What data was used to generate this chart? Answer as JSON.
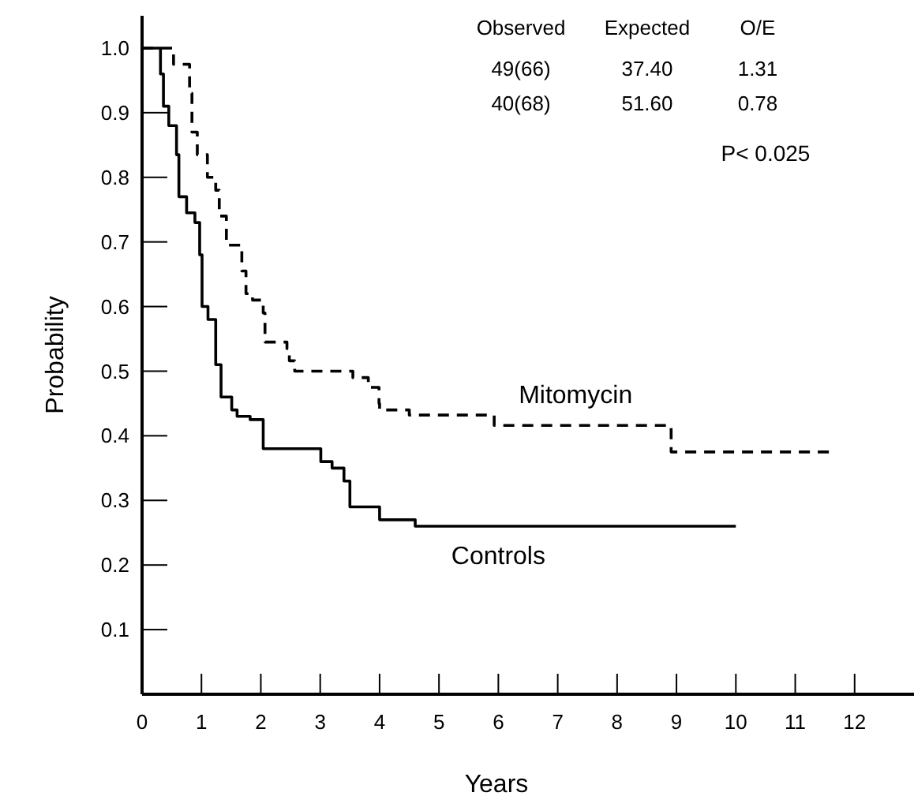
{
  "chart_data": {
    "type": "step",
    "xlabel": "Years",
    "ylabel": "Probability",
    "xlim": [
      0,
      13
    ],
    "xticks": [
      0,
      1,
      2,
      3,
      4,
      5,
      6,
      7,
      8,
      9,
      10,
      11,
      12
    ],
    "ylim": [
      0,
      1.05
    ],
    "yticks": [
      {
        "value": 0.1,
        "label": "0.1"
      },
      {
        "value": 0.2,
        "label": "0.2"
      },
      {
        "value": 0.3,
        "label": "0.3"
      },
      {
        "value": 0.4,
        "label": "0.4"
      },
      {
        "value": 0.5,
        "label": "0.5"
      },
      {
        "value": 0.6,
        "label": "0.6"
      },
      {
        "value": 0.7,
        "label": "0.7"
      },
      {
        "value": 0.8,
        "label": "0.8"
      },
      {
        "value": 0.9,
        "label": "0.9"
      },
      {
        "value": 1,
        "label": "1.0"
      }
    ],
    "grid": false,
    "series": [
      {
        "name": "Mitomycin",
        "color": "#000000",
        "line_style": "dashed",
        "x": [
          0,
          0.53,
          0.8,
          0.84,
          0.93,
          1.1,
          1.24,
          1.3,
          1.42,
          1.68,
          1.75,
          1.86,
          2.04,
          2.07,
          2.44,
          2.48,
          2.57,
          3.55,
          3.81,
          3.99,
          4.0,
          4.5,
          5.93,
          8.91,
          11.6
        ],
        "values": [
          1.0,
          0.975,
          0.93,
          0.87,
          0.835,
          0.8,
          0.78,
          0.74,
          0.695,
          0.655,
          0.62,
          0.61,
          0.59,
          0.545,
          0.535,
          0.516,
          0.5,
          0.49,
          0.475,
          0.45,
          0.44,
          0.432,
          0.416,
          0.375,
          0.375
        ]
      },
      {
        "name": "Controls",
        "color": "#000000",
        "line_style": "solid",
        "x": [
          0,
          0.31,
          0.36,
          0.45,
          0.58,
          0.62,
          0.75,
          0.89,
          0.97,
          1.01,
          1.11,
          1.24,
          1.33,
          1.51,
          1.6,
          1.82,
          2.04,
          3.01,
          3.2,
          3.4,
          3.5,
          4.0,
          4.6,
          10.0
        ],
        "values": [
          1.0,
          0.96,
          0.91,
          0.88,
          0.835,
          0.77,
          0.745,
          0.73,
          0.68,
          0.6,
          0.58,
          0.51,
          0.46,
          0.44,
          0.43,
          0.425,
          0.38,
          0.36,
          0.35,
          0.33,
          0.29,
          0.27,
          0.26,
          0.26
        ]
      }
    ],
    "annotations": [
      "Observed",
      "Expected",
      "O/E",
      "49(66)",
      "37.40",
      "1.31",
      "40(68)",
      "51.60",
      "0.78",
      "P< 0.025"
    ]
  }
}
